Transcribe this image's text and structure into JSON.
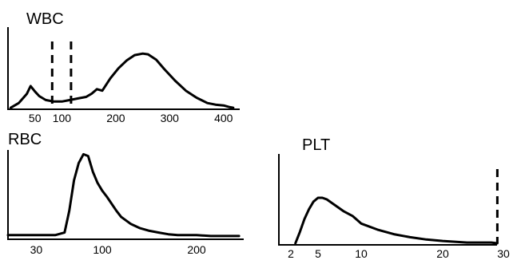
{
  "chart_data": [
    {
      "type": "line",
      "title": "WBC",
      "xlabel": "",
      "ylabel": "",
      "x_ticks": [
        50,
        100,
        200,
        300,
        400
      ],
      "xlim": [
        0,
        430
      ],
      "ylim": [
        0,
        1
      ],
      "grid": false,
      "series": [
        {
          "x": [
            5,
            20,
            35,
            42,
            50,
            58,
            70,
            85,
            100,
            115,
            130,
            145,
            155,
            165,
            175,
            190,
            205,
            220,
            235,
            250,
            260,
            275,
            290,
            310,
            330,
            350,
            370,
            385,
            400,
            410,
            418
          ],
          "y": [
            0.02,
            0.08,
            0.2,
            0.3,
            0.23,
            0.17,
            0.12,
            0.1,
            0.1,
            0.12,
            0.14,
            0.16,
            0.2,
            0.26,
            0.24,
            0.4,
            0.53,
            0.63,
            0.7,
            0.72,
            0.71,
            0.64,
            0.52,
            0.37,
            0.24,
            0.15,
            0.08,
            0.06,
            0.05,
            0.03,
            0.02
          ]
        }
      ],
      "markers_x": [
        82,
        117
      ]
    },
    {
      "type": "line",
      "title": "RBC",
      "xlabel": "",
      "ylabel": "",
      "x_ticks": [
        30,
        100,
        200
      ],
      "xlim": [
        0,
        250
      ],
      "ylim": [
        0,
        1
      ],
      "grid": false,
      "series": [
        {
          "x": [
            0,
            30,
            50,
            60,
            65,
            70,
            75,
            80,
            85,
            90,
            95,
            100,
            105,
            110,
            115,
            120,
            130,
            140,
            150,
            160,
            170,
            180,
            190,
            200,
            215,
            230,
            245
          ],
          "y": [
            0.02,
            0.02,
            0.02,
            0.05,
            0.3,
            0.65,
            0.85,
            0.95,
            0.93,
            0.75,
            0.62,
            0.53,
            0.46,
            0.38,
            0.3,
            0.23,
            0.15,
            0.1,
            0.07,
            0.05,
            0.03,
            0.02,
            0.02,
            0.02,
            0.01,
            0.01,
            0.01
          ]
        }
      ]
    },
    {
      "type": "line",
      "title": "PLT",
      "xlabel": "",
      "ylabel": "",
      "x_ticks": [
        2,
        5,
        10,
        20,
        30
      ],
      "xlim": [
        2,
        30
      ],
      "ylim": [
        0,
        1
      ],
      "grid": false,
      "series": [
        {
          "x": [
            2.5,
            3,
            3.5,
            4,
            4.5,
            5,
            5.5,
            6,
            7,
            8,
            9,
            10,
            12,
            14,
            16,
            18,
            20,
            22,
            24,
            26,
            28,
            29
          ],
          "y": [
            0.0,
            0.15,
            0.32,
            0.45,
            0.55,
            0.6,
            0.6,
            0.58,
            0.5,
            0.42,
            0.36,
            0.26,
            0.18,
            0.12,
            0.08,
            0.05,
            0.03,
            0.02,
            0.01,
            0.01,
            0.01,
            0.0
          ]
        }
      ],
      "markers_x": [
        29
      ]
    }
  ]
}
